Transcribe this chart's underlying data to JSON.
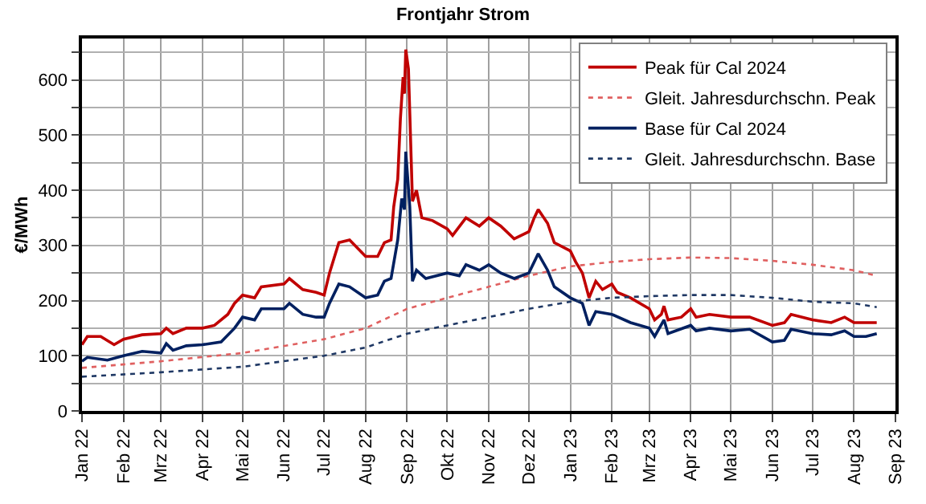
{
  "chart_data": {
    "type": "line",
    "title": "Frontjahr Strom",
    "ylabel": "€/MWh",
    "grid": true,
    "legend": "top right",
    "ylim": [
      0,
      675
    ],
    "yticks": [
      0,
      {
        "value": 50,
        "label": null
      },
      100,
      {
        "value": 150,
        "label": null
      },
      200,
      {
        "value": 250,
        "label": null
      },
      300,
      {
        "value": 350,
        "label": null
      },
      400,
      {
        "value": 450,
        "label": null
      },
      500,
      {
        "value": 550,
        "label": null
      },
      600,
      {
        "value": 650,
        "label": null
      }
    ],
    "xlim": [
      "2022-01-01",
      "2023-09-01"
    ],
    "xticks": [
      {
        "value": "2022-01-01",
        "label": "Jan 22"
      },
      {
        "value": "2022-02-01",
        "label": "Feb 22"
      },
      {
        "value": "2022-03-01",
        "label": "Mrz 22"
      },
      {
        "value": "2022-04-01",
        "label": "Apr 22"
      },
      {
        "value": "2022-05-01",
        "label": "Mai 22"
      },
      {
        "value": "2022-06-01",
        "label": "Jun 22"
      },
      {
        "value": "2022-07-01",
        "label": "Jul 22"
      },
      {
        "value": "2022-08-01",
        "label": "Aug 22"
      },
      {
        "value": "2022-09-01",
        "label": "Sep 22"
      },
      {
        "value": "2022-10-01",
        "label": "Okt 22"
      },
      {
        "value": "2022-11-01",
        "label": "Nov 22"
      },
      {
        "value": "2022-12-01",
        "label": "Dez 22"
      },
      {
        "value": "2023-01-01",
        "label": "Jan 23"
      },
      {
        "value": "2023-02-01",
        "label": "Feb 23"
      },
      {
        "value": "2023-03-01",
        "label": "Mrz 23"
      },
      {
        "value": "2023-04-01",
        "label": "Apr 23"
      },
      {
        "value": "2023-05-01",
        "label": "Mai 23"
      },
      {
        "value": "2023-06-01",
        "label": "Jun 23"
      },
      {
        "value": "2023-07-01",
        "label": "Jul 23"
      },
      {
        "value": "2023-08-01",
        "label": "Aug 23"
      },
      {
        "value": "2023-09-01",
        "label": "Sep 23"
      }
    ],
    "series": [
      {
        "name": "Peak für Cal 2024",
        "color": "#c00000",
        "line_style": "solid",
        "x": [
          "2022-01-01",
          "2022-01-05",
          "2022-01-15",
          "2022-01-25",
          "2022-02-01",
          "2022-02-15",
          "2022-03-01",
          "2022-03-05",
          "2022-03-10",
          "2022-03-20",
          "2022-04-01",
          "2022-04-10",
          "2022-04-20",
          "2022-04-25",
          "2022-05-01",
          "2022-05-10",
          "2022-05-15",
          "2022-06-01",
          "2022-06-05",
          "2022-06-15",
          "2022-06-25",
          "2022-07-01",
          "2022-07-05",
          "2022-07-12",
          "2022-07-20",
          "2022-08-01",
          "2022-08-10",
          "2022-08-15",
          "2022-08-20",
          "2022-08-22",
          "2022-08-25",
          "2022-08-27",
          "2022-08-29",
          "2022-08-30",
          "2022-08-31",
          "2022-09-02",
          "2022-09-05",
          "2022-09-08",
          "2022-09-12",
          "2022-09-20",
          "2022-10-01",
          "2022-10-05",
          "2022-10-15",
          "2022-10-25",
          "2022-11-01",
          "2022-11-10",
          "2022-11-20",
          "2022-12-01",
          "2022-12-05",
          "2022-12-08",
          "2022-12-15",
          "2022-12-20",
          "2023-01-01",
          "2023-01-05",
          "2023-01-10",
          "2023-01-15",
          "2023-01-20",
          "2023-01-25",
          "2023-02-01",
          "2023-02-05",
          "2023-02-15",
          "2023-03-01",
          "2023-03-05",
          "2023-03-10",
          "2023-03-12",
          "2023-03-15",
          "2023-03-25",
          "2023-04-01",
          "2023-04-05",
          "2023-04-15",
          "2023-05-01",
          "2023-05-15",
          "2023-06-01",
          "2023-06-10",
          "2023-06-15",
          "2023-07-01",
          "2023-07-15",
          "2023-07-25",
          "2023-08-01",
          "2023-08-10",
          "2023-08-18"
        ],
        "values": [
          120,
          135,
          135,
          120,
          130,
          138,
          140,
          150,
          140,
          150,
          150,
          155,
          175,
          195,
          210,
          205,
          225,
          230,
          240,
          220,
          215,
          210,
          250,
          305,
          310,
          280,
          280,
          305,
          310,
          370,
          420,
          530,
          605,
          575,
          655,
          620,
          380,
          400,
          350,
          345,
          330,
          318,
          350,
          335,
          350,
          335,
          312,
          325,
          350,
          365,
          340,
          305,
          290,
          270,
          250,
          205,
          235,
          220,
          230,
          215,
          205,
          185,
          165,
          175,
          190,
          165,
          170,
          185,
          170,
          175,
          170,
          170,
          155,
          160,
          175,
          165,
          160,
          170,
          160,
          160,
          160
        ]
      },
      {
        "name": "Gleit. Jahresdurchschn. Peak",
        "color": "#e06060",
        "line_style": "dotted",
        "x": [
          "2022-01-01",
          "2022-03-01",
          "2022-05-01",
          "2022-07-01",
          "2022-08-01",
          "2022-09-01",
          "2022-10-01",
          "2022-11-01",
          "2022-12-01",
          "2023-01-01",
          "2023-02-01",
          "2023-03-01",
          "2023-04-01",
          "2023-05-01",
          "2023-06-01",
          "2023-07-01",
          "2023-08-01",
          "2023-08-18"
        ],
        "values": [
          78,
          90,
          105,
          130,
          150,
          185,
          205,
          225,
          245,
          262,
          270,
          275,
          278,
          277,
          272,
          265,
          255,
          245
        ]
      },
      {
        "name": "Base für Cal 2024",
        "color": "#002060",
        "line_style": "solid",
        "x": [
          "2022-01-01",
          "2022-01-05",
          "2022-01-20",
          "2022-02-01",
          "2022-02-15",
          "2022-03-01",
          "2022-03-05",
          "2022-03-10",
          "2022-03-20",
          "2022-04-01",
          "2022-04-15",
          "2022-04-25",
          "2022-05-01",
          "2022-05-10",
          "2022-05-15",
          "2022-06-01",
          "2022-06-05",
          "2022-06-15",
          "2022-06-25",
          "2022-07-01",
          "2022-07-05",
          "2022-07-12",
          "2022-07-20",
          "2022-08-01",
          "2022-08-10",
          "2022-08-15",
          "2022-08-20",
          "2022-08-25",
          "2022-08-28",
          "2022-08-30",
          "2022-08-31",
          "2022-09-03",
          "2022-09-05",
          "2022-09-08",
          "2022-09-15",
          "2022-10-01",
          "2022-10-10",
          "2022-10-15",
          "2022-10-25",
          "2022-11-01",
          "2022-11-10",
          "2022-11-20",
          "2022-12-01",
          "2022-12-05",
          "2022-12-08",
          "2022-12-15",
          "2022-12-20",
          "2023-01-01",
          "2023-01-10",
          "2023-01-15",
          "2023-01-20",
          "2023-02-01",
          "2023-02-15",
          "2023-03-01",
          "2023-03-05",
          "2023-03-12",
          "2023-03-15",
          "2023-04-01",
          "2023-04-05",
          "2023-04-15",
          "2023-05-01",
          "2023-05-15",
          "2023-06-01",
          "2023-06-10",
          "2023-06-15",
          "2023-07-01",
          "2023-07-15",
          "2023-07-25",
          "2023-08-01",
          "2023-08-10",
          "2023-08-18"
        ],
        "values": [
          90,
          97,
          92,
          100,
          108,
          105,
          122,
          110,
          118,
          120,
          125,
          150,
          170,
          165,
          185,
          185,
          195,
          175,
          170,
          170,
          195,
          230,
          225,
          205,
          210,
          235,
          240,
          310,
          385,
          365,
          470,
          370,
          235,
          255,
          240,
          250,
          245,
          265,
          255,
          265,
          250,
          240,
          250,
          270,
          285,
          255,
          225,
          205,
          195,
          155,
          180,
          175,
          160,
          150,
          135,
          165,
          140,
          155,
          145,
          150,
          145,
          148,
          125,
          128,
          148,
          140,
          138,
          145,
          135,
          135,
          140
        ]
      },
      {
        "name": "Gleit. Jahresdurchschn. Base",
        "color": "#1f3864",
        "line_style": "dotted",
        "x": [
          "2022-01-01",
          "2022-03-01",
          "2022-05-01",
          "2022-07-01",
          "2022-08-01",
          "2022-09-01",
          "2022-10-01",
          "2022-11-01",
          "2022-12-01",
          "2023-01-01",
          "2023-02-01",
          "2023-03-01",
          "2023-04-01",
          "2023-05-01",
          "2023-06-01",
          "2023-07-01",
          "2023-08-01",
          "2023-08-18"
        ],
        "values": [
          62,
          70,
          80,
          100,
          115,
          140,
          155,
          170,
          185,
          198,
          205,
          208,
          210,
          210,
          205,
          198,
          195,
          188
        ]
      }
    ]
  }
}
